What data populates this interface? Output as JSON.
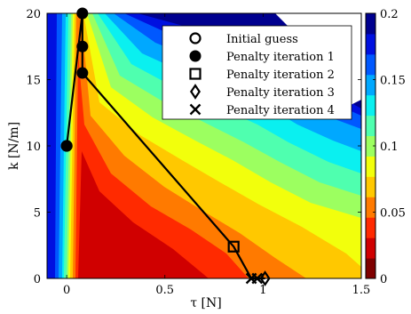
{
  "chart_data": {
    "type": "contour",
    "xlabel": "τ [N]",
    "ylabel": "k [N/m]",
    "xlim": [
      -0.1,
      1.5
    ],
    "ylim": [
      0,
      20
    ],
    "xticks": [
      "0",
      "0.5",
      "1",
      "1.5"
    ],
    "xtick_values": [
      0,
      0.5,
      1,
      1.5
    ],
    "yticks": [
      "0",
      "5",
      "10",
      "15",
      "20"
    ],
    "ytick_values": [
      0,
      5,
      10,
      15,
      20
    ],
    "colorbar": {
      "range": [
        0,
        0.2
      ],
      "ticks": [
        "0",
        "0.05",
        "0.1",
        "0.15",
        "0.2"
      ],
      "tick_values": [
        0,
        0.05,
        0.1,
        0.15,
        0.2
      ],
      "colormap": "jet-reversed",
      "colors": [
        "#7f0000",
        "#d00000",
        "#ff2a00",
        "#ff7a00",
        "#ffc800",
        "#f2ff0c",
        "#9cff60",
        "#4fffaf",
        "#0af0f0",
        "#00a8ff",
        "#0058ff",
        "#0010e0",
        "#00008f"
      ]
    },
    "series": [
      {
        "name": "Initial guess",
        "marker": "circle-open",
        "points": [
          {
            "x": 0.0,
            "y": 10.0
          }
        ]
      },
      {
        "name": "Penalty iteration 1",
        "marker": "circle-filled",
        "points": [
          {
            "x": 0.0,
            "y": 10.0
          },
          {
            "x": 0.08,
            "y": 20.0
          },
          {
            "x": 0.08,
            "y": 17.5
          },
          {
            "x": 0.08,
            "y": 15.5
          }
        ]
      },
      {
        "name": "Penalty iteration 2",
        "marker": "square-open",
        "points": [
          {
            "x": 0.85,
            "y": 2.4
          }
        ]
      },
      {
        "name": "Penalty iteration 3",
        "marker": "diamond-open",
        "points": [
          {
            "x": 1.01,
            "y": 0.0
          }
        ]
      },
      {
        "name": "Penalty iteration 4",
        "marker": "x",
        "points": [
          {
            "x": 0.94,
            "y": 0.0
          },
          {
            "x": 0.97,
            "y": 0.0
          }
        ]
      }
    ],
    "path": [
      {
        "x": 0.0,
        "y": 10.0
      },
      {
        "x": 0.08,
        "y": 20.0
      },
      {
        "x": 0.08,
        "y": 17.5
      },
      {
        "x": 0.08,
        "y": 15.5
      },
      {
        "x": 0.85,
        "y": 2.4
      },
      {
        "x": 0.94,
        "y": 0.0
      },
      {
        "x": 0.97,
        "y": 0.0
      },
      {
        "x": 1.01,
        "y": 0.0
      }
    ],
    "legend": {
      "placement": "top-right"
    },
    "grid": false
  }
}
